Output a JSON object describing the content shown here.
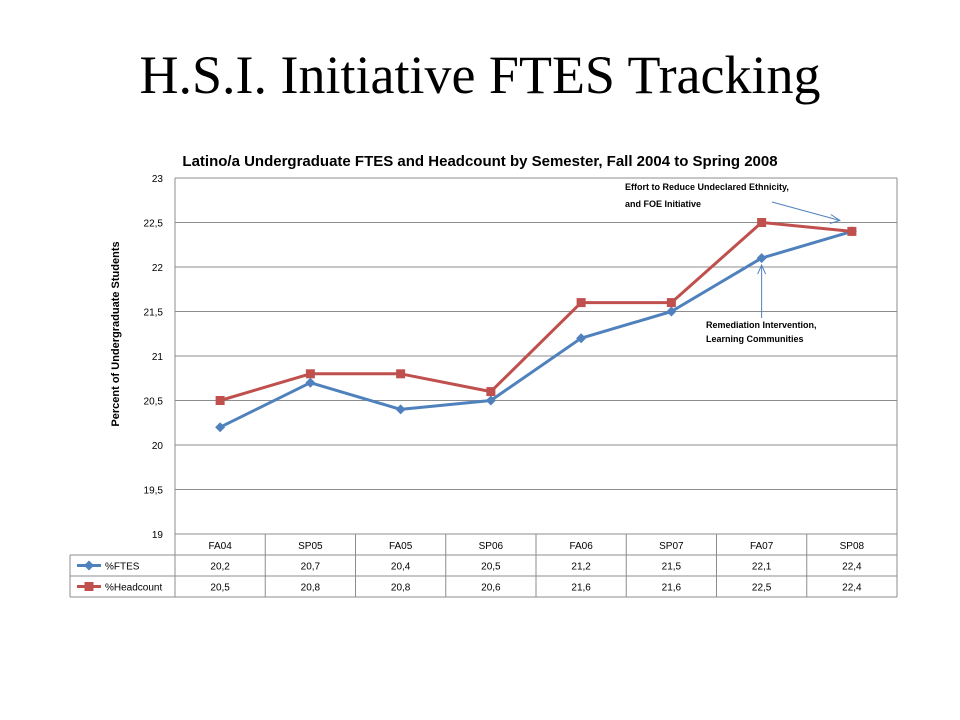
{
  "slide": {
    "title": "H.S.I. Initiative FTES Tracking"
  },
  "chart_data": {
    "type": "line",
    "title": "Latino/a Undergraduate FTES and Headcount by Semester, Fall 2004 to Spring 2008",
    "ylabel": "Percent of Undergraduate Students",
    "xlabel": "",
    "categories": [
      "FA04",
      "SP05",
      "FA05",
      "SP06",
      "FA06",
      "SP07",
      "FA07",
      "SP08"
    ],
    "ylim": [
      19,
      23
    ],
    "ytick_step": 0.5,
    "yticks": [
      "19",
      "19,5",
      "20",
      "20,5",
      "21",
      "21,5",
      "22",
      "22,5",
      "23"
    ],
    "grid": true,
    "legend": "data-table",
    "series": [
      {
        "name": "%FTES",
        "color": "#4F81BD",
        "marker": "diamond",
        "values": [
          20.2,
          20.7,
          20.4,
          20.5,
          21.2,
          21.5,
          22.1,
          22.4
        ],
        "labels": [
          "20,2",
          "20,7",
          "20,4",
          "20,5",
          "21,2",
          "21,5",
          "22,1",
          "22,4"
        ]
      },
      {
        "name": "%Headcount",
        "color": "#C0504D",
        "marker": "square",
        "values": [
          20.5,
          20.8,
          20.8,
          20.6,
          21.6,
          21.6,
          22.5,
          22.4
        ],
        "labels": [
          "20,5",
          "20,8",
          "20,8",
          "20,6",
          "21,6",
          "21,6",
          "22,5",
          "22,4"
        ]
      }
    ],
    "annotations": [
      {
        "lines": [
          "Effort to Reduce Undeclared Ethnicity,",
          "and FOE Initiative"
        ],
        "target": {
          "category": "SP08",
          "value": 22.5
        }
      },
      {
        "lines": [
          "Remediation Intervention,",
          "Learning Communities"
        ],
        "target": {
          "category": "FA07",
          "value": 22.1
        }
      }
    ]
  }
}
